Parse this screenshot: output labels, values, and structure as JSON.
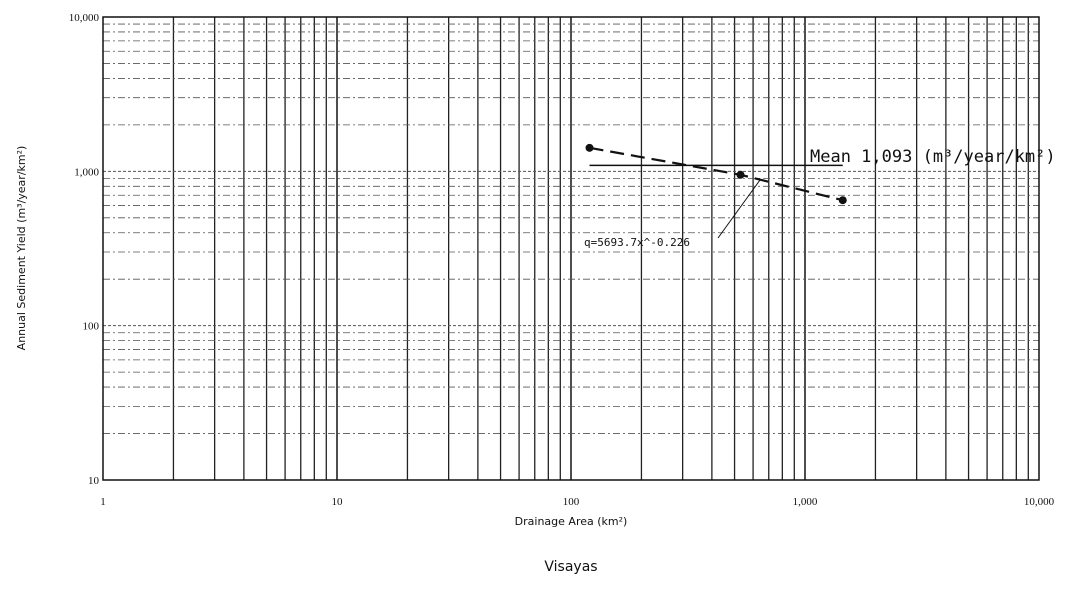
{
  "chart_data": {
    "type": "scatter",
    "title": "Visayas",
    "xlabel": "Drainage Area (km²)",
    "ylabel": "Annual Sediment Yield (m³/year/km²)",
    "x_scale": "log",
    "y_scale": "log",
    "xlim": [
      1,
      10000
    ],
    "ylim": [
      10,
      10000
    ],
    "x_ticks": [
      1,
      10,
      100,
      1000,
      10000
    ],
    "x_tick_labels": [
      "1",
      "10",
      "100",
      "1,000",
      "10,000"
    ],
    "y_ticks": [
      10,
      100,
      1000,
      10000
    ],
    "y_tick_labels": [
      "10",
      "100",
      "1,000",
      "10,000"
    ],
    "grid": true,
    "series": [
      {
        "points": [
          {
            "x": 120,
            "y": 1420
          },
          {
            "x": 530,
            "y": 950
          },
          {
            "x": 1450,
            "y": 650
          }
        ],
        "line_style": "dashed"
      }
    ],
    "mean_line": {
      "y": 1093,
      "x_range": [
        120,
        1450
      ],
      "label": "Mean 1,093 (m³/year/km²)"
    },
    "regression_label": "q=5693.7x^-0.226"
  }
}
